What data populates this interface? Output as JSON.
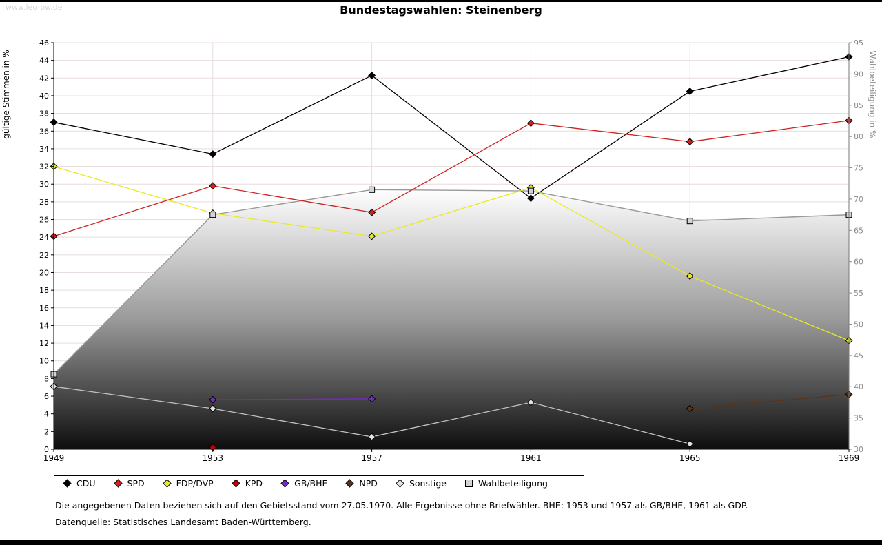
{
  "watermark": "www.leo-bw.de",
  "footnotes": {
    "line1": "Die angegebenen Daten beziehen sich auf den Gebietsstand vom 27.05.1970. Alle Ergebnisse ohne Briefwähler. BHE: 1953 und 1957 als GB/BHE, 1961 als GDP.",
    "line2": "Datenquelle: Statistisches Landesamt Baden-Württemberg."
  },
  "chart_data": {
    "type": "line",
    "title": "Bundestagswahlen: Steinenberg",
    "x": [
      "1949",
      "1953",
      "1957",
      "1961",
      "1965",
      "1969"
    ],
    "left_axis": {
      "label": "gültige Stimmen in %",
      "min": 0,
      "max": 46,
      "tick_step": 2
    },
    "right_axis": {
      "label": "Wahlbeteiligung in %",
      "min": 30,
      "max": 95,
      "tick_step": 5
    },
    "grid": true,
    "legend_position": "bottom",
    "colors": {
      "grid": "#e8dcdc",
      "axis": "#000000",
      "right_axis_text": "#8c8c8c"
    },
    "series": [
      {
        "name": "CDU",
        "style": "line",
        "axis": "left",
        "marker": "diamond",
        "color": "#000000",
        "values": [
          37.0,
          33.4,
          42.3,
          28.4,
          40.5,
          44.4
        ]
      },
      {
        "name": "SPD",
        "style": "line",
        "axis": "left",
        "marker": "diamond",
        "color": "#cc2222",
        "values": [
          24.1,
          29.8,
          26.8,
          36.9,
          34.8,
          37.2
        ]
      },
      {
        "name": "FDP/DVP",
        "style": "line",
        "axis": "left",
        "marker": "diamond",
        "color": "#e9e920",
        "values": [
          32.0,
          26.7,
          24.1,
          29.6,
          19.6,
          12.3
        ]
      },
      {
        "name": "KPD",
        "style": "line",
        "axis": "left",
        "marker": "diamond",
        "color": "#c00000",
        "values": [
          null,
          0.2,
          null,
          null,
          null,
          null
        ]
      },
      {
        "name": "GB/BHE",
        "style": "line",
        "axis": "left",
        "marker": "diamond",
        "color": "#7d26cd",
        "values": [
          null,
          5.6,
          5.7,
          null,
          null,
          null
        ]
      },
      {
        "name": "NPD",
        "style": "line",
        "axis": "left",
        "marker": "diamond",
        "color": "#5a3317",
        "values": [
          null,
          null,
          null,
          null,
          4.6,
          6.2
        ]
      },
      {
        "name": "Sonstige",
        "style": "line",
        "axis": "left",
        "marker": "diamond",
        "color": "#c4c4c4",
        "marker_fill": "#e2e2e2",
        "values": [
          7.1,
          4.6,
          1.4,
          5.3,
          0.6,
          null
        ]
      },
      {
        "name": "Wahlbeteiligung",
        "style": "area",
        "axis": "right",
        "marker": "square",
        "color": "#999999",
        "marker_fill": "#d4d4d4",
        "gradient": [
          "#0d0d0d",
          "#9a9a9a",
          "#ffffff"
        ],
        "values": [
          42.0,
          67.5,
          71.5,
          71.3,
          66.5,
          67.5
        ]
      }
    ]
  }
}
